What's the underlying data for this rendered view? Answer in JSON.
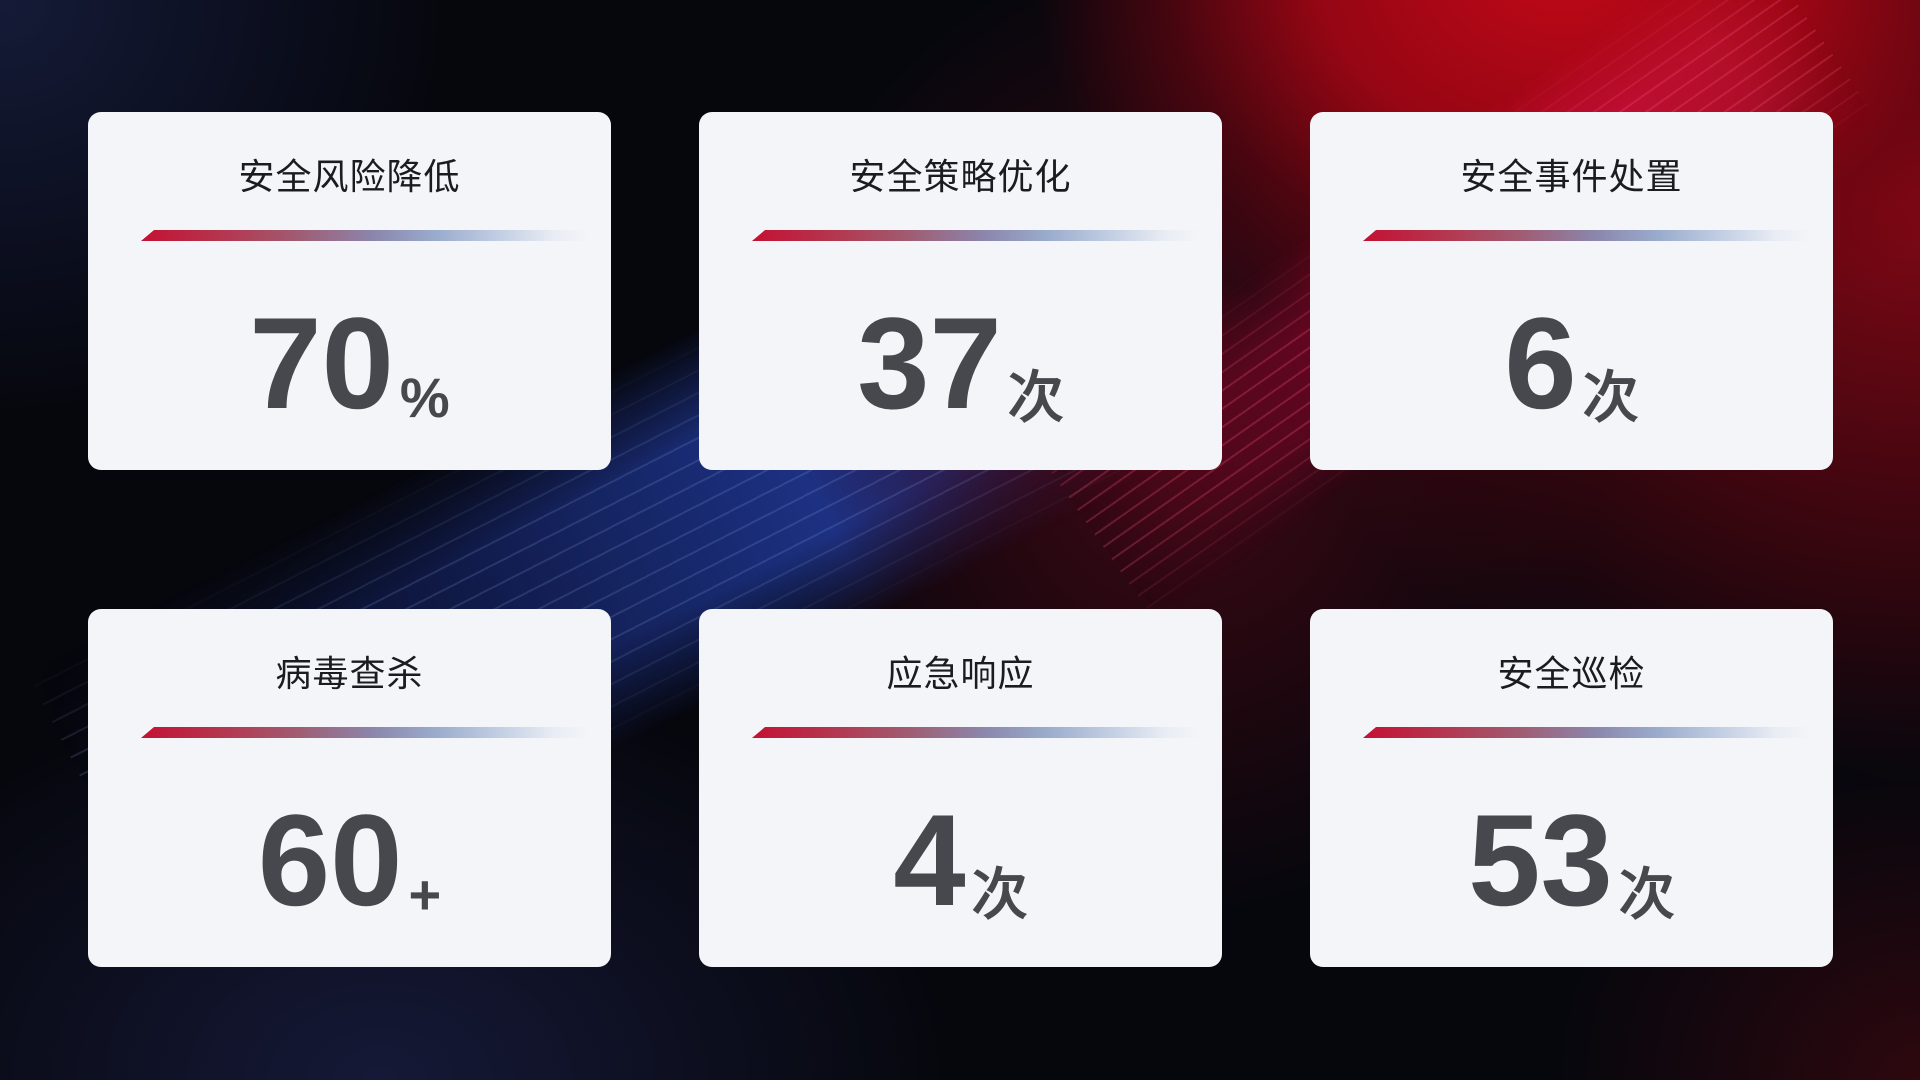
{
  "page": {
    "type": "security-operations-stats-dashboard",
    "background": {
      "base_color": "#06070d",
      "top_left_navy": "#161c3a",
      "top_right_red": "#b30917",
      "right_maroon": "#5a0a12",
      "center_blue_beam": "#22409e"
    }
  },
  "card_style": {
    "card_background": "#f4f5f8",
    "title_color": "#1b1c20",
    "value_color": "#47484d",
    "divider_gradient_left": "#c41133",
    "divider_gradient_mid": "#8b86ad",
    "divider_gradient_right": "#e8ecf4"
  },
  "cards": [
    {
      "title": "安全风险降低",
      "value": "70",
      "unit": "%"
    },
    {
      "title": "安全策略优化",
      "value": "37",
      "unit": "次"
    },
    {
      "title": "安全事件处置",
      "value": "6",
      "unit": "次"
    },
    {
      "title": "病毒查杀",
      "value": "60",
      "unit": "+"
    },
    {
      "title": "应急响应",
      "value": "4",
      "unit": "次"
    },
    {
      "title": "安全巡检",
      "value": "53",
      "unit": "次"
    }
  ]
}
